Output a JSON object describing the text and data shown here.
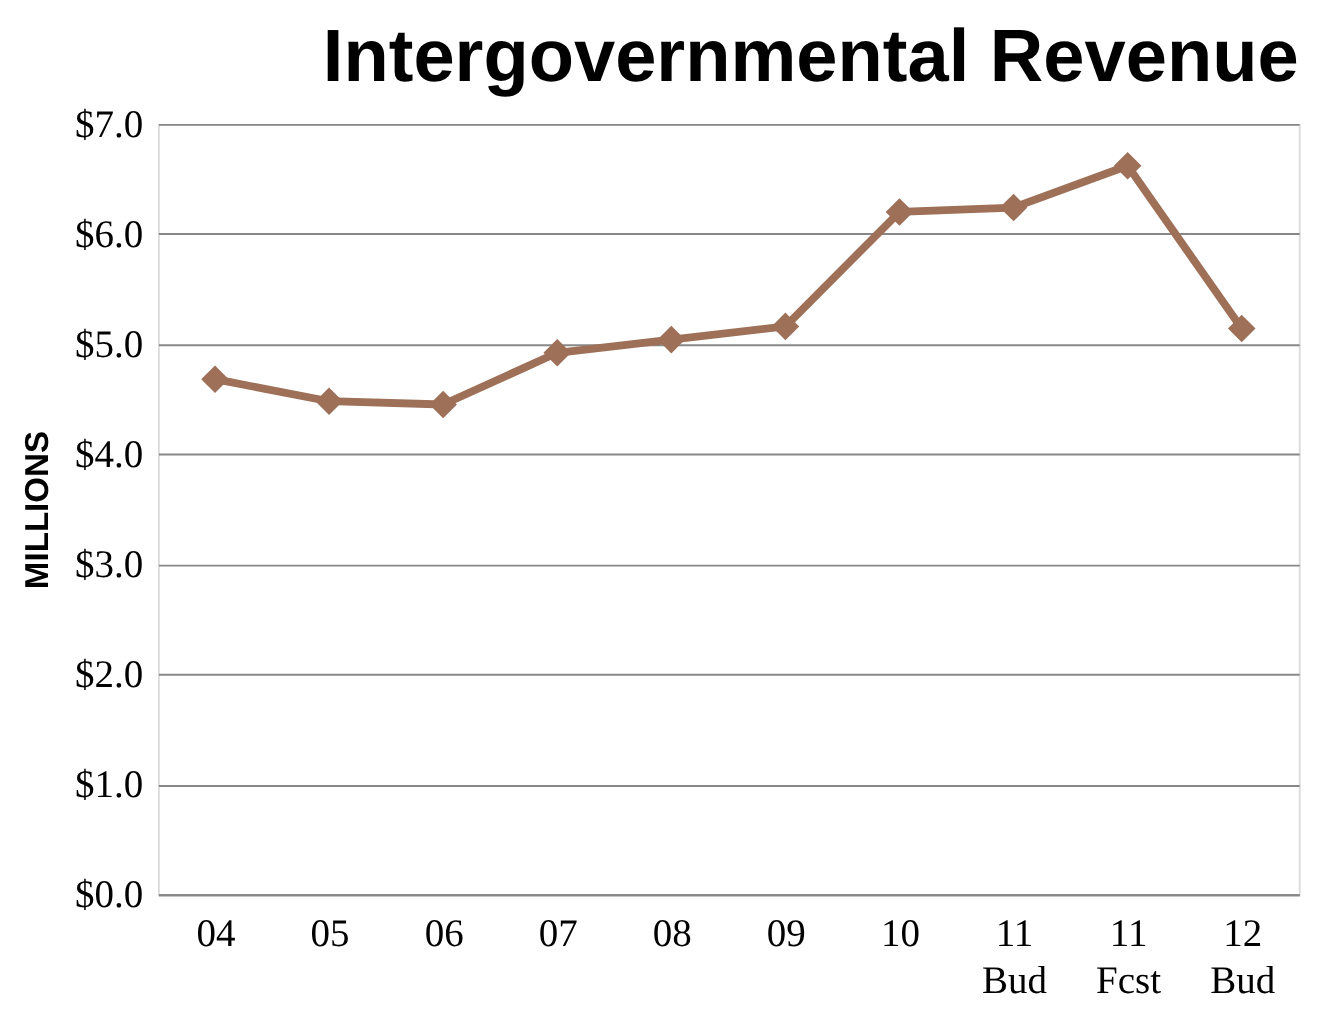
{
  "chart_data": {
    "type": "line",
    "title": "Intergovernmental Revenue",
    "ylabel": "MILLIONS",
    "categories": [
      "04",
      "05",
      "06",
      "07",
      "08",
      "09",
      "10",
      "11\nBud",
      "11\nFcst",
      "12\nBud"
    ],
    "series": [
      {
        "color": "#9e7058",
        "values": [
          4.68,
          4.48,
          4.45,
          4.92,
          5.04,
          5.16,
          6.2,
          6.24,
          6.62,
          5.14
        ]
      }
    ],
    "ylim": [
      0,
      7
    ],
    "yticks": [
      {
        "value": 0,
        "label": "$0.0"
      },
      {
        "value": 1,
        "label": "$1.0"
      },
      {
        "value": 2,
        "label": "$2.0"
      },
      {
        "value": 3,
        "label": "$3.0"
      },
      {
        "value": 4,
        "label": "$4.0"
      },
      {
        "value": 5,
        "label": "$5.0"
      },
      {
        "value": 6,
        "label": "$6.0"
      },
      {
        "value": 7,
        "label": "$7.0"
      }
    ],
    "grid": "y",
    "marker": "diamond",
    "line_style": "solid"
  }
}
